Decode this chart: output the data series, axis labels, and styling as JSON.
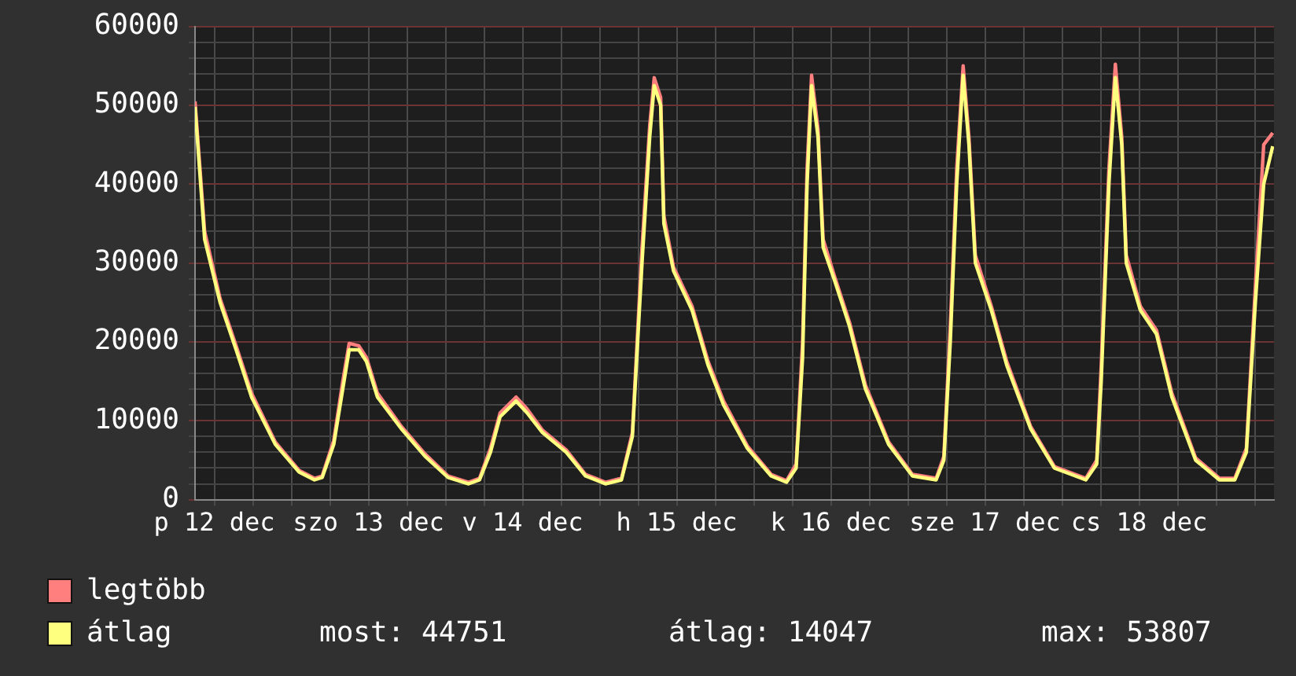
{
  "chart_data": {
    "type": "line",
    "x": [
      "--12-12T09:00",
      "--12-12T10:30",
      "--12-12T12:54",
      "--12-12T15:24",
      "--12-12T17:48",
      "--12-12T21:30",
      "--12-13T01:12",
      "--12-13T03:36",
      "--12-13T04:48",
      "--12-13T06:36",
      "--12-13T08:00",
      "--12-13T09:00",
      "--12-13T10:30",
      "--12-13T11:42",
      "--12-13T13:24",
      "--12-13T17:06",
      "--12-13T20:48",
      "--12-14T00:24",
      "--12-14T03:36",
      "--12-14T05:18",
      "--12-14T07:00",
      "--12-14T08:30",
      "--12-14T11:00",
      "--12-14T12:42",
      "--12-14T15:06",
      "--12-14T18:48",
      "--12-14T21:48",
      "--12-15T00:54",
      "--12-15T03:24",
      "--12-15T05:06",
      "--12-15T06:36",
      "--12-15T07:48",
      "--12-15T08:30",
      "--12-15T09:30",
      "--12-15T10:00",
      "--12-15T11:30",
      "--12-15T14:24",
      "--12-15T16:54",
      "--12-15T19:18",
      "--12-15T23:00",
      "--12-16T02:42",
      "--12-16T05:06",
      "--12-16T06:36",
      "--12-16T07:36",
      "--12-16T08:18",
      "--12-16T09:00",
      "--12-16T10:00",
      "--12-16T10:48",
      "--12-16T12:30",
      "--12-16T14:54",
      "--12-16T17:24",
      "--12-16T21:00",
      "--12-17T00:42",
      "--12-17T04:24",
      "--12-17T05:36",
      "--12-17T06:36",
      "--12-17T07:36",
      "--12-17T08:36",
      "--12-17T09:30",
      "--12-17T10:30",
      "--12-17T13:00",
      "--12-17T15:24",
      "--12-17T19:06",
      "--12-17T22:48",
      "--12-18T03:42",
      "--12-18T05:24",
      "--12-18T06:06",
      "--12-18T07:18",
      "--12-18T08:18",
      "--12-18T09:18",
      "--12-18T10:00",
      "--12-18T12:12",
      "--12-18T14:42",
      "--12-18T17:06",
      "--12-18T20:48",
      "--12-19T00:30",
      "--12-19T02:54",
      "--12-19T04:42",
      "--12-19T06:06",
      "--12-19T07:24",
      "--12-19T08:48"
    ],
    "series": [
      {
        "name": "legtöbb",
        "color": "#ff7f7f",
        "values": [
          50500,
          34000,
          25500,
          19500,
          13500,
          7300,
          3700,
          2700,
          3000,
          7500,
          15000,
          19800,
          19500,
          18000,
          13500,
          9300,
          5800,
          3000,
          2200,
          2700,
          6500,
          11000,
          13000,
          11500,
          8800,
          6300,
          3200,
          2200,
          2700,
          8500,
          32000,
          47500,
          53500,
          51000,
          36000,
          29500,
          24500,
          17500,
          12500,
          6800,
          3200,
          2400,
          4500,
          20000,
          42000,
          53800,
          47000,
          33000,
          28500,
          22500,
          14500,
          7300,
          3200,
          2700,
          5500,
          22000,
          42000,
          55000,
          46000,
          31000,
          24500,
          17500,
          9300,
          4200,
          2700,
          5000,
          17000,
          42000,
          55200,
          46000,
          31000,
          24500,
          21500,
          13500,
          5300,
          2700,
          2700,
          6500,
          27000,
          45000,
          46500
        ]
      },
      {
        "name": "átlag",
        "color": "#ffff7f",
        "values": [
          49800,
          33000,
          25000,
          19000,
          13000,
          7000,
          3500,
          2500,
          2800,
          7000,
          14000,
          19000,
          19000,
          17500,
          13000,
          9000,
          5500,
          2800,
          2000,
          2500,
          6000,
          10500,
          12500,
          11000,
          8500,
          6000,
          3000,
          2000,
          2500,
          8000,
          30000,
          46000,
          52500,
          50000,
          35000,
          29000,
          24000,
          17000,
          12000,
          6500,
          3000,
          2200,
          4000,
          18000,
          40000,
          52500,
          46000,
          32000,
          28000,
          22000,
          14000,
          7000,
          3000,
          2500,
          5000,
          20000,
          40000,
          53800,
          45000,
          30000,
          24000,
          17000,
          9000,
          4000,
          2500,
          4500,
          15000,
          40000,
          53500,
          45000,
          30000,
          24000,
          21000,
          13000,
          5000,
          2500,
          2500,
          6000,
          25000,
          40000,
          44800
        ]
      }
    ],
    "xlim": [
      "--12-12T09:00",
      "--12-19T09:00"
    ],
    "xticks": [
      {
        "value": "--12-12T12:00",
        "label": "p 12 dec"
      },
      {
        "value": "--12-12T18:00",
        "label": null
      },
      {
        "value": "--12-13T00:00",
        "label": null
      },
      {
        "value": "--12-13T06:00",
        "label": null
      },
      {
        "value": "--12-13T12:00",
        "label": "szo 13 dec"
      },
      {
        "value": "--12-13T18:00",
        "label": null
      },
      {
        "value": "--12-14T00:00",
        "label": null
      },
      {
        "value": "--12-14T06:00",
        "label": null
      },
      {
        "value": "--12-14T12:00",
        "label": "v 14 dec"
      },
      {
        "value": "--12-14T18:00",
        "label": null
      },
      {
        "value": "--12-15T00:00",
        "label": null
      },
      {
        "value": "--12-15T06:00",
        "label": null
      },
      {
        "value": "--12-15T12:00",
        "label": "h 15 dec"
      },
      {
        "value": "--12-15T18:00",
        "label": null
      },
      {
        "value": "--12-16T00:00",
        "label": null
      },
      {
        "value": "--12-16T06:00",
        "label": null
      },
      {
        "value": "--12-16T12:00",
        "label": "k 16 dec"
      },
      {
        "value": "--12-16T18:00",
        "label": null
      },
      {
        "value": "--12-17T00:00",
        "label": null
      },
      {
        "value": "--12-17T06:00",
        "label": null
      },
      {
        "value": "--12-17T12:00",
        "label": "sze 17 dec"
      },
      {
        "value": "--12-17T18:00",
        "label": null
      },
      {
        "value": "--12-18T00:00",
        "label": null
      },
      {
        "value": "--12-18T06:00",
        "label": null
      },
      {
        "value": "--12-18T12:00",
        "label": "cs 18 dec"
      },
      {
        "value": "--12-18T18:00",
        "label": null
      },
      {
        "value": "--12-19T00:00",
        "label": null
      },
      {
        "value": "--12-19T06:00",
        "label": null
      }
    ],
    "ylim": [
      0,
      60000
    ],
    "yticks": [
      0,
      {
        "value": 2000,
        "label": null
      },
      {
        "value": 4000,
        "label": null
      },
      {
        "value": 6000,
        "label": null
      },
      {
        "value": 8000,
        "label": null
      },
      10000,
      {
        "value": 12000,
        "label": null
      },
      {
        "value": 14000,
        "label": null
      },
      {
        "value": 16000,
        "label": null
      },
      {
        "value": 18000,
        "label": null
      },
      20000,
      {
        "value": 22000,
        "label": null
      },
      {
        "value": 24000,
        "label": null
      },
      {
        "value": 26000,
        "label": null
      },
      {
        "value": 28000,
        "label": null
      },
      30000,
      {
        "value": 32000,
        "label": null
      },
      {
        "value": 34000,
        "label": null
      },
      {
        "value": 36000,
        "label": null
      },
      {
        "value": 38000,
        "label": null
      },
      40000,
      {
        "value": 42000,
        "label": null
      },
      {
        "value": 44000,
        "label": null
      },
      {
        "value": 46000,
        "label": null
      },
      {
        "value": 48000,
        "label": null
      },
      50000,
      {
        "value": 52000,
        "label": null
      },
      {
        "value": 54000,
        "label": null
      },
      {
        "value": 56000,
        "label": null
      },
      {
        "value": 58000,
        "label": null
      },
      60000
    ],
    "grid": true,
    "legend": "bottom left",
    "marker": "none",
    "line_style": "solid",
    "annotations": [
      "most: 44751",
      "átlag: 14047",
      "max: 53807"
    ]
  }
}
